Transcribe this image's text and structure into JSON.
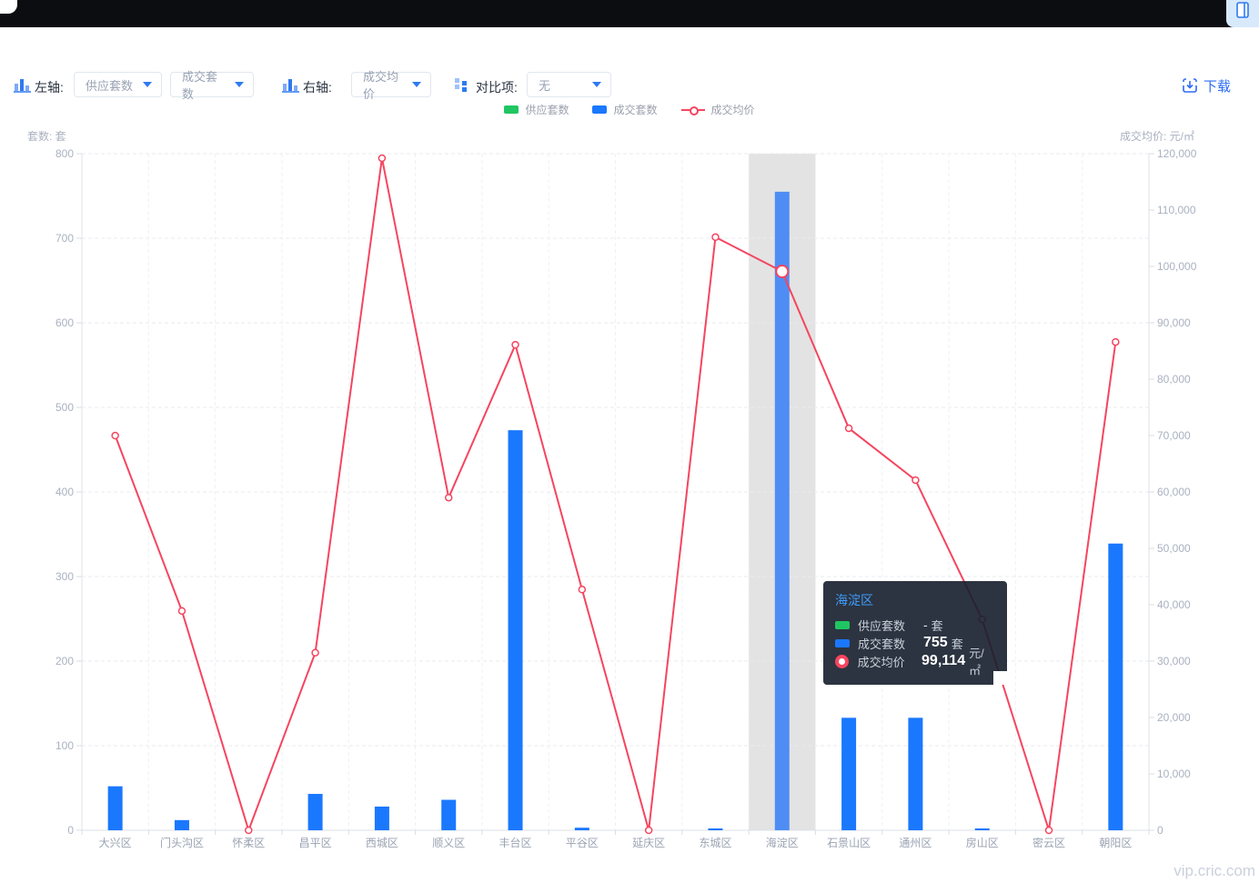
{
  "toolbar": {
    "left_axis_label": "左轴:",
    "left_dropdown_1": "供应套数",
    "left_dropdown_2": "成交套数",
    "right_axis_label": "右轴:",
    "right_dropdown": "成交均价",
    "compare_label": "对比项:",
    "compare_dropdown": "无",
    "download_label": "下载"
  },
  "legend": [
    {
      "label": "供应套数",
      "marker": "rect",
      "color": "#1fc662"
    },
    {
      "label": "成交套数",
      "marker": "rect",
      "color": "#1a78ff"
    },
    {
      "label": "成交均价",
      "marker": "line",
      "color": "#f5455f"
    }
  ],
  "chart_data": {
    "type": "bar+line",
    "categories": [
      "大兴区",
      "门头沟区",
      "怀柔区",
      "昌平区",
      "西城区",
      "顺义区",
      "丰台区",
      "平谷区",
      "延庆区",
      "东城区",
      "海淀区",
      "石景山区",
      "通州区",
      "房山区",
      "密云区",
      "朝阳区"
    ],
    "series": [
      {
        "name": "供应套数",
        "type": "bar",
        "axis": "left",
        "color": "#1fc662",
        "values": [
          null,
          null,
          null,
          null,
          null,
          null,
          null,
          null,
          null,
          null,
          null,
          null,
          null,
          null,
          null,
          null
        ]
      },
      {
        "name": "成交套数",
        "type": "bar",
        "axis": "left",
        "color": "#1a78ff",
        "values": [
          52,
          12,
          0,
          43,
          28,
          36,
          473,
          3,
          0,
          2,
          755,
          133,
          133,
          2,
          0,
          339
        ]
      },
      {
        "name": "成交均价",
        "type": "line",
        "axis": "right",
        "color": "#f5455f",
        "values": [
          70000,
          38900,
          0,
          31500,
          119200,
          59000,
          86100,
          42700,
          0,
          105200,
          99114,
          71300,
          62100,
          37400,
          0,
          86600
        ]
      }
    ],
    "left_axis": {
      "title": "套数: 套",
      "min": 0,
      "max": 800,
      "interval": 100
    },
    "right_axis": {
      "title": "成交均价: 元/㎡",
      "min": 0,
      "max": 120000,
      "interval": 10000
    },
    "highlight": {
      "category": "海淀区",
      "band_color": "rgba(0,0,0,0.11)",
      "bar_color": "#4f8df5"
    },
    "grid": {
      "h_dashed": true,
      "v_dashed": true
    },
    "legend_position": "top-center"
  },
  "tooltip": {
    "title": "海淀区",
    "rows": [
      {
        "label": "供应套数",
        "value": "-",
        "unit": "套",
        "marker": "rect",
        "color": "#1fc662"
      },
      {
        "label": "成交套数",
        "value": "755",
        "unit": "套",
        "marker": "rect",
        "color": "#1a78ff"
      },
      {
        "label": "成交均价",
        "value": "99,114",
        "unit": "元/㎡",
        "marker": "donut",
        "color": "#f5455f"
      }
    ]
  },
  "watermark": "vip.cric.com"
}
